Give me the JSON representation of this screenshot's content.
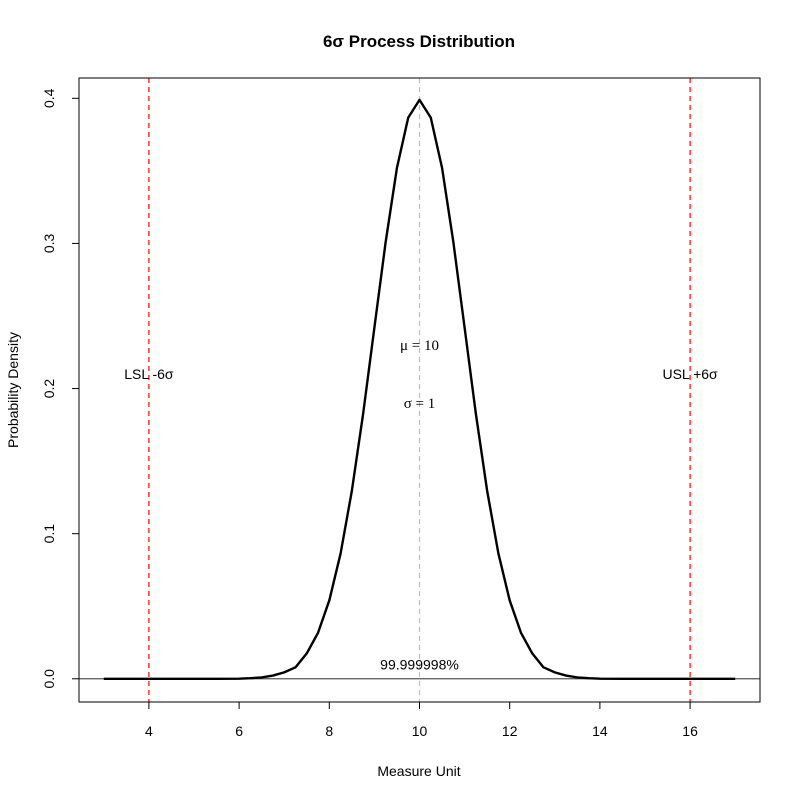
{
  "chart_data": {
    "type": "line",
    "title": "6σ Process Distribution",
    "xlabel": "Measure Unit",
    "ylabel": "Probability Density",
    "xlim": [
      2.45,
      17.55
    ],
    "ylim": [
      -0.016,
      0.414
    ],
    "x_ticks": [
      4,
      6,
      8,
      10,
      12,
      14,
      16
    ],
    "y_ticks": [
      0.0,
      0.1,
      0.2,
      0.3,
      0.4
    ],
    "x_tick_labels": [
      "4",
      "6",
      "8",
      "10",
      "12",
      "14",
      "16"
    ],
    "y_tick_labels": [
      "0.0",
      "0.1",
      "0.2",
      "0.3",
      "0.4"
    ],
    "grid": false,
    "series": [
      {
        "color": "#000000",
        "x": [
          3.0,
          3.5,
          4.0,
          4.5,
          5.0,
          5.5,
          6.0,
          6.25,
          6.5,
          6.75,
          7.0,
          7.25,
          7.5,
          7.75,
          8.0,
          8.25,
          8.5,
          8.75,
          9.0,
          9.25,
          9.5,
          9.75,
          10.0,
          10.25,
          10.5,
          10.75,
          11.0,
          11.25,
          11.5,
          11.75,
          12.0,
          12.25,
          12.5,
          12.75,
          13.0,
          13.25,
          13.5,
          13.75,
          14.0,
          14.5,
          15.0,
          15.5,
          16.0,
          16.5,
          17.0
        ],
        "y": [
          0.0,
          0.0,
          0.0,
          0.0,
          0.0,
          0.0,
          0.0001,
          0.0004,
          0.0009,
          0.0022,
          0.0044,
          0.0079,
          0.0175,
          0.0317,
          0.054,
          0.0863,
          0.1295,
          0.1826,
          0.242,
          0.3011,
          0.3521,
          0.3867,
          0.3989,
          0.3867,
          0.3521,
          0.3011,
          0.242,
          0.1826,
          0.1295,
          0.0863,
          0.054,
          0.0317,
          0.0175,
          0.0079,
          0.0044,
          0.0022,
          0.0009,
          0.0004,
          0.0001,
          0.0,
          0.0,
          0.0,
          0.0,
          0.0,
          0.0
        ]
      }
    ],
    "reference_lines": [
      {
        "type": "vertical",
        "x": 4,
        "color": "#ff0000",
        "style": "dashed"
      },
      {
        "type": "vertical",
        "x": 16,
        "color": "#ff0000",
        "style": "dashed"
      },
      {
        "type": "vertical",
        "x": 10,
        "color": "#bebebe",
        "style": "dashed"
      },
      {
        "type": "horizontal",
        "y": 0,
        "color": "#555555",
        "style": "solid"
      }
    ],
    "annotations": [
      {
        "text": "LSL -6σ",
        "x": 4,
        "y": 0.21
      },
      {
        "text": "USL +6σ",
        "x": 16,
        "y": 0.21
      },
      {
        "text": "μ = 10",
        "x": 10,
        "y": 0.23
      },
      {
        "text": "σ = 1",
        "x": 10,
        "y": 0.19
      },
      {
        "text": "99.999998%",
        "x": 10,
        "y": 0.01
      }
    ]
  }
}
